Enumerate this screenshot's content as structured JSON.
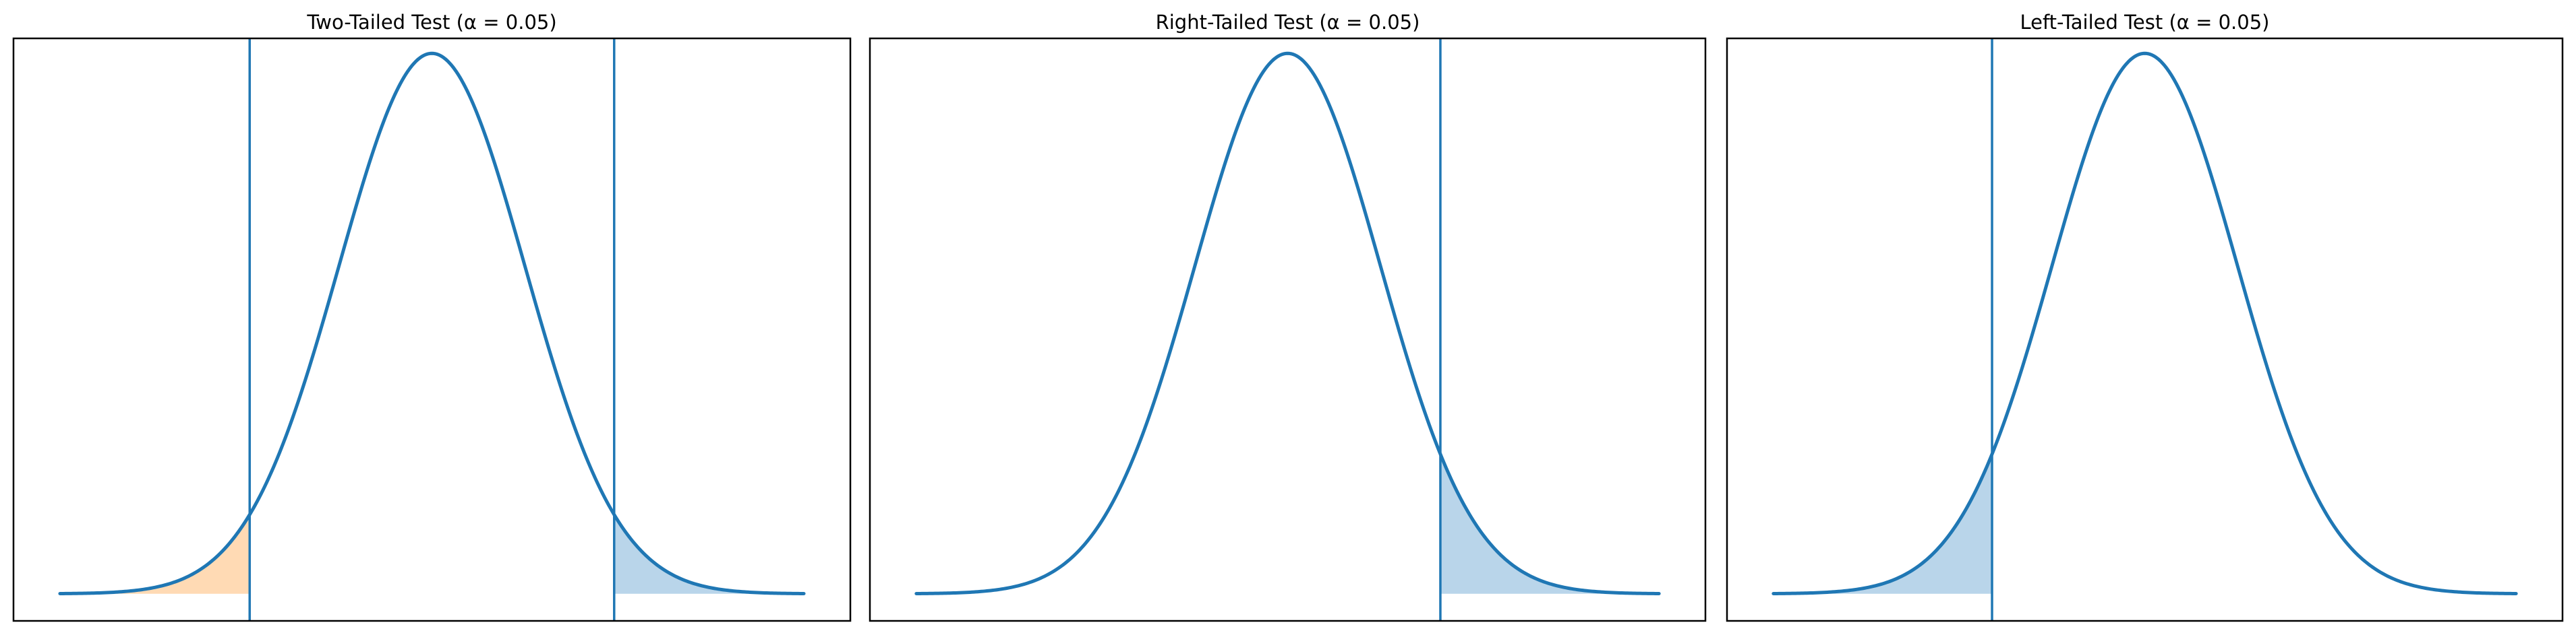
{
  "figure": {
    "background": "#ffffff",
    "curve_color": "#1f77b4",
    "critical_line_color": "#1f77b4"
  },
  "chart_data": [
    {
      "type": "area",
      "title": "Two-Tailed Test (α = 0.05)",
      "xlabel": "",
      "ylabel": "",
      "distribution": "standard normal",
      "alpha": 0.05,
      "xlim": [
        -4.5,
        4.5
      ],
      "ylim": [
        -0.02,
        0.41
      ],
      "x_range": [
        -4.0,
        4.0
      ],
      "critical_values": [
        -1.96,
        1.96
      ],
      "shaded_regions": [
        {
          "from": -4.0,
          "to": -1.96,
          "color": "#ffdab4"
        },
        {
          "from": 1.96,
          "to": 4.0,
          "color": "#b9d5ea"
        }
      ],
      "grid": false,
      "axes_visible": false
    },
    {
      "type": "area",
      "title": "Right-Tailed Test (α = 0.05)",
      "xlabel": "",
      "ylabel": "",
      "distribution": "standard normal",
      "alpha": 0.05,
      "xlim": [
        -4.5,
        4.5
      ],
      "ylim": [
        -0.02,
        0.41
      ],
      "x_range": [
        -4.0,
        4.0
      ],
      "critical_values": [
        1.645
      ],
      "shaded_regions": [
        {
          "from": 1.645,
          "to": 4.0,
          "color": "#b9d5ea"
        }
      ],
      "grid": false,
      "axes_visible": false
    },
    {
      "type": "area",
      "title": "Left-Tailed Test (α = 0.05)",
      "xlabel": "",
      "ylabel": "",
      "distribution": "standard normal",
      "alpha": 0.05,
      "xlim": [
        -4.5,
        4.5
      ],
      "ylim": [
        -0.02,
        0.41
      ],
      "x_range": [
        -4.0,
        4.0
      ],
      "critical_values": [
        -1.645
      ],
      "shaded_regions": [
        {
          "from": -4.0,
          "to": -1.645,
          "color": "#b9d5ea"
        }
      ],
      "grid": false,
      "axes_visible": false
    }
  ]
}
